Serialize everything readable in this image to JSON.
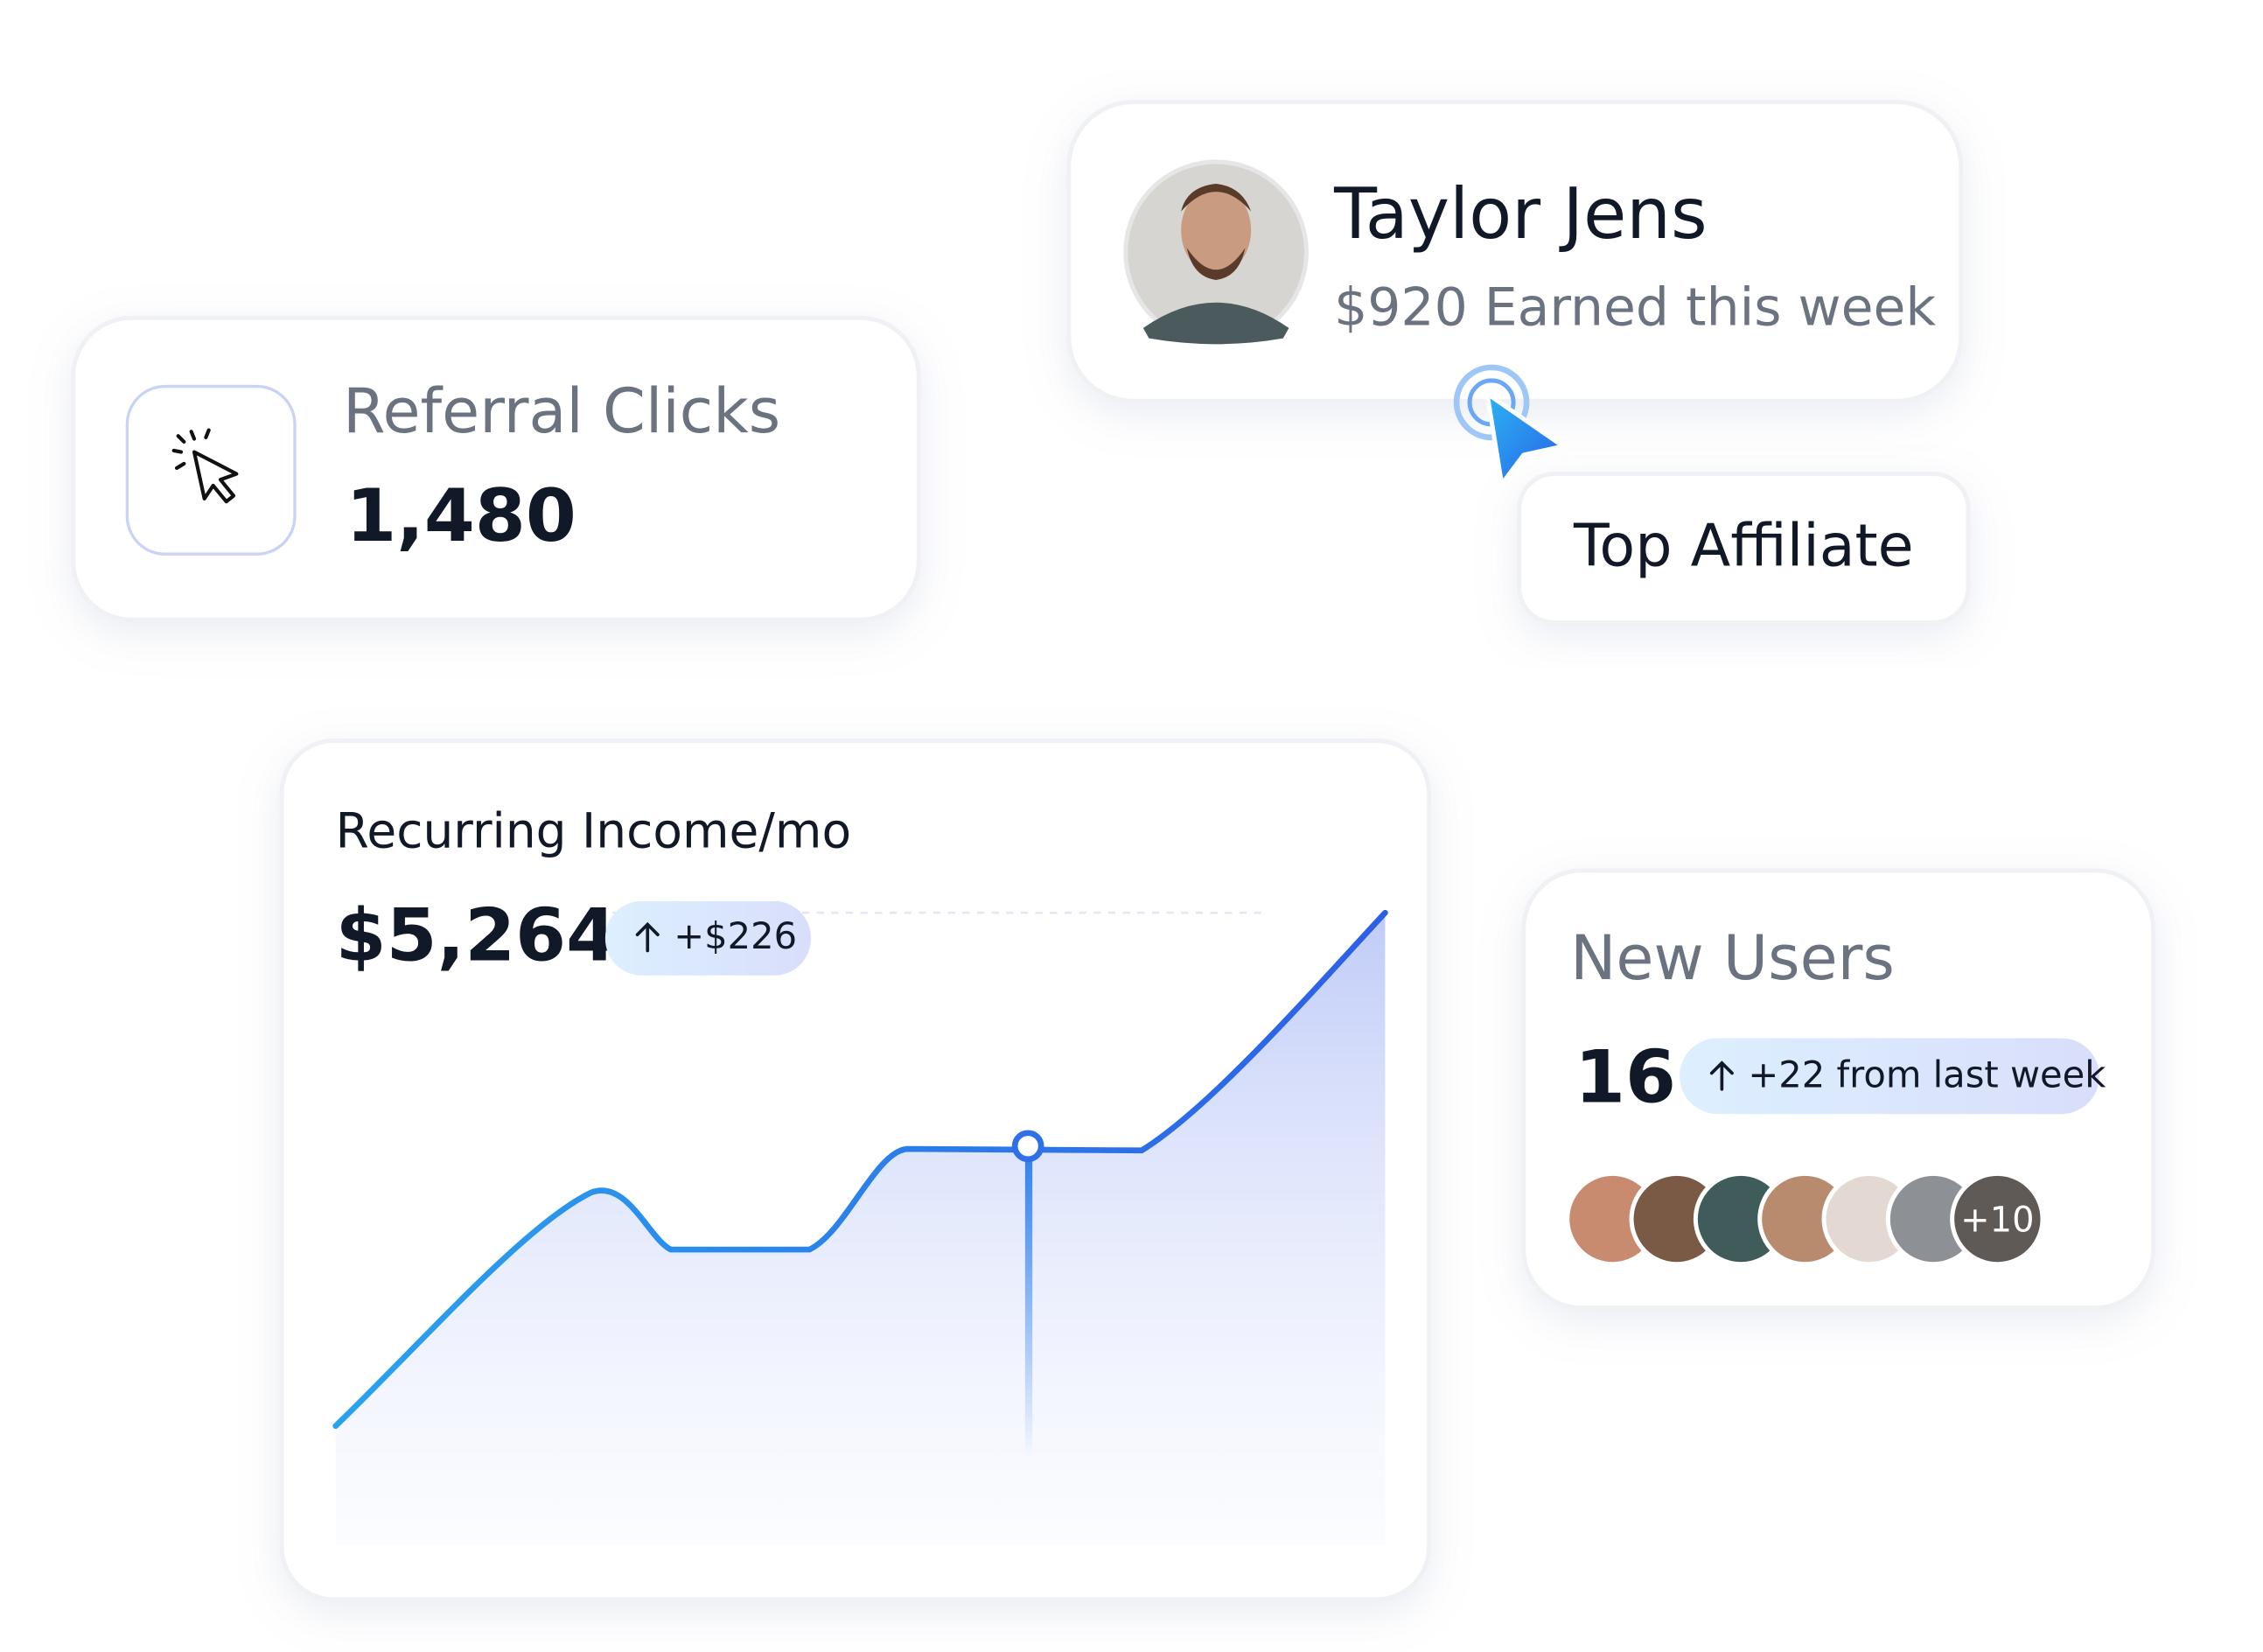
{
  "referral": {
    "label": "Referral Clicks",
    "value": "1,480"
  },
  "affiliate": {
    "name": "Taylor Jens",
    "earnings": "$920 Earned this week",
    "badge": "Top Affiliate"
  },
  "income": {
    "title": "Recurring Income/mo",
    "value": "$5,264",
    "change": "+$226"
  },
  "users": {
    "title": "New Users",
    "value": "16",
    "change": "+22 from last week",
    "more": "+10"
  }
}
